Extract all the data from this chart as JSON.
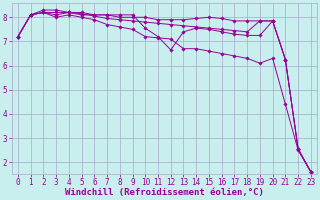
{
  "background_color": "#c8eeed",
  "grid_color": "#aaaacc",
  "line_color": "#990099",
  "marker_color": "#990099",
  "xlabel": "Windchill (Refroidissement éolien,°C)",
  "xlabel_color": "#990099",
  "xlabel_fontsize": 6.5,
  "tick_color": "#990099",
  "tick_fontsize": 5.5,
  "ylim": [
    1.5,
    8.6
  ],
  "yticks": [
    2,
    3,
    4,
    5,
    6,
    7,
    8
  ],
  "xlim": [
    -0.5,
    23.5
  ],
  "xticks": [
    0,
    1,
    2,
    3,
    4,
    5,
    6,
    7,
    8,
    9,
    10,
    11,
    12,
    13,
    14,
    15,
    16,
    17,
    18,
    19,
    20,
    21,
    22,
    23
  ],
  "xtick_labels": [
    "0",
    "1",
    "2",
    "3",
    "4",
    "5",
    "6",
    "7",
    "8",
    "9",
    "10",
    "11",
    "12",
    "13",
    "14",
    "15",
    "16",
    "17",
    "18",
    "19",
    "20",
    "21",
    "22",
    "23"
  ],
  "series": [
    [
      7.2,
      8.1,
      8.2,
      8.0,
      8.1,
      8.0,
      7.9,
      7.7,
      7.6,
      7.5,
      7.2,
      7.15,
      7.1,
      6.7,
      6.7,
      6.6,
      6.5,
      6.4,
      6.3,
      6.1,
      6.3,
      4.4,
      2.5,
      1.6
    ],
    [
      7.2,
      8.1,
      8.2,
      8.1,
      8.2,
      8.1,
      8.1,
      8.1,
      8.0,
      8.0,
      8.0,
      7.9,
      7.9,
      7.9,
      7.95,
      8.0,
      7.95,
      7.85,
      7.85,
      7.85,
      7.85,
      6.25,
      2.55,
      1.6
    ],
    [
      7.2,
      8.1,
      8.2,
      8.2,
      8.2,
      8.2,
      8.1,
      8.1,
      8.1,
      8.1,
      7.55,
      7.2,
      6.65,
      7.4,
      7.55,
      7.5,
      7.4,
      7.3,
      7.25,
      7.25,
      7.85,
      6.25,
      2.55,
      1.6
    ],
    [
      7.2,
      8.1,
      8.3,
      8.3,
      8.2,
      8.15,
      8.05,
      7.95,
      7.9,
      7.85,
      7.8,
      7.75,
      7.7,
      7.65,
      7.6,
      7.55,
      7.5,
      7.45,
      7.4,
      7.85,
      7.85,
      6.25,
      2.55,
      1.6
    ]
  ]
}
